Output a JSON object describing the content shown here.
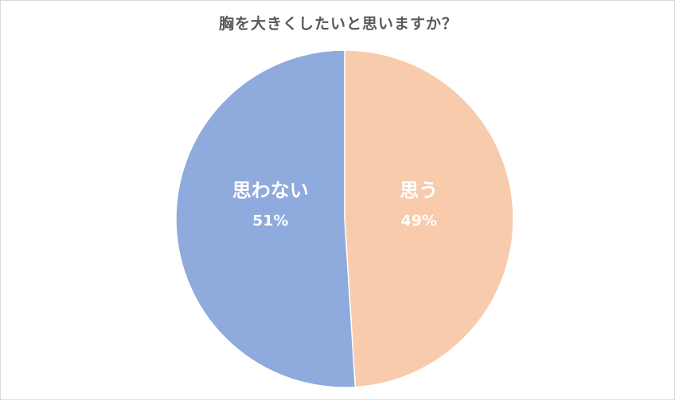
{
  "chart_data": {
    "type": "pie",
    "title": "胸を大きくしたいと思いますか？",
    "categories": [
      "思う",
      "思わない"
    ],
    "values": [
      49,
      51
    ],
    "data_labels": [
      "49%",
      "51%"
    ],
    "colors": [
      "#f8cbad",
      "#8faadc"
    ],
    "start_angle": "12 o'clock",
    "direction": "clockwise",
    "legend": "none",
    "label_color": "#ffffff"
  }
}
